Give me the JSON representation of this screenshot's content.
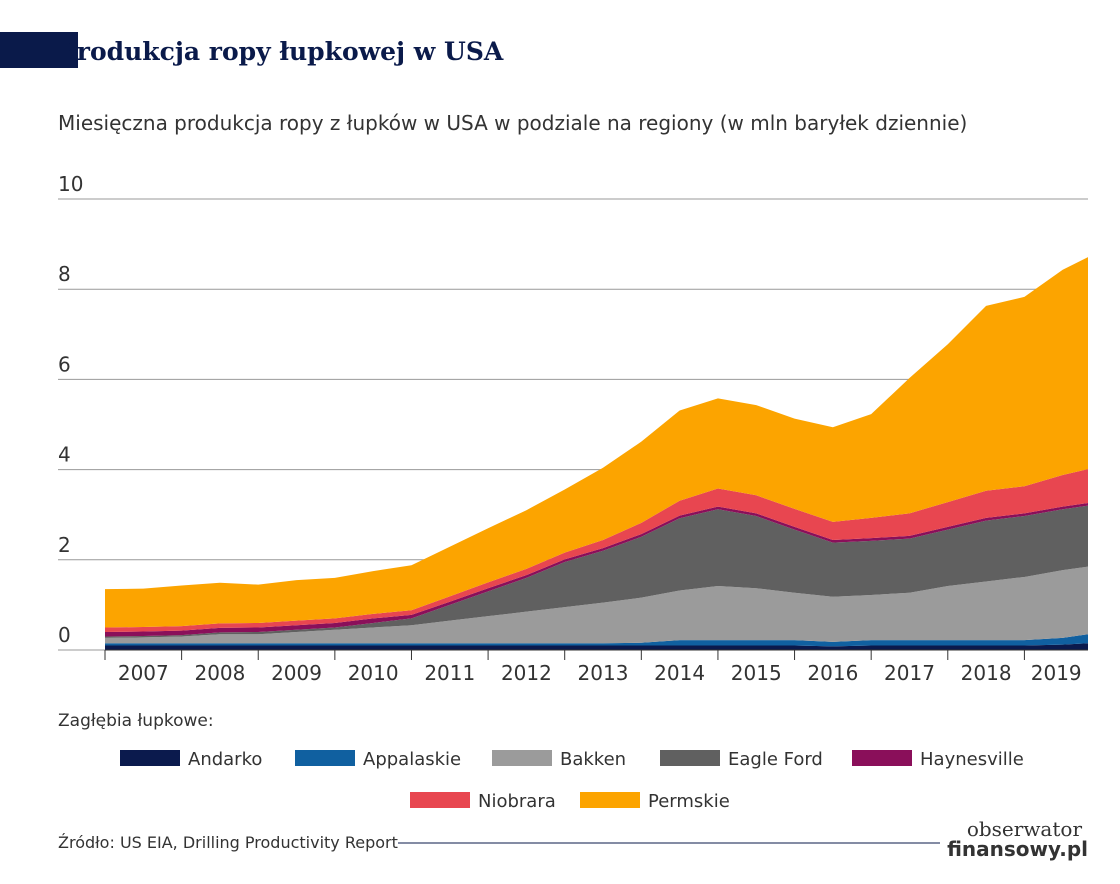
{
  "chart_data": {
    "type": "stacked_area",
    "title": "Produkcja ropy łupkowej w USA",
    "subtitle": "Miesięczna produkcja ropy z łupków w USA w podziale na regiony (w mln baryłek dziennie)",
    "legend_title": "Zagłębia łupkowe:",
    "source": "Źródło: US EIA, Drilling Productivity Report",
    "logo": [
      "obserwator",
      "finansowy.pl"
    ],
    "x": [
      2007,
      2007.5,
      2008,
      2008.5,
      2009,
      2009.5,
      2010,
      2010.5,
      2011,
      2011.5,
      2012,
      2012.5,
      2013,
      2013.5,
      2014,
      2014.5,
      2015,
      2015.5,
      2016,
      2016.5,
      2017,
      2017.5,
      2018,
      2018.5,
      2019,
      2019.5,
      2019.83
    ],
    "xlim": [
      2007,
      2019.83
    ],
    "xticks": [
      2007,
      2008,
      2009,
      2010,
      2011,
      2012,
      2013,
      2014,
      2015,
      2016,
      2017,
      2018,
      2019
    ],
    "ylim": [
      0,
      10
    ],
    "yticks": [
      0,
      2,
      4,
      6,
      8,
      10
    ],
    "grid": true,
    "series": [
      {
        "name": "Andarko",
        "color": "#0b1a4d",
        "values": [
          0.1,
          0.1,
          0.1,
          0.1,
          0.1,
          0.1,
          0.1,
          0.1,
          0.1,
          0.1,
          0.1,
          0.1,
          0.1,
          0.1,
          0.1,
          0.1,
          0.1,
          0.1,
          0.1,
          0.08,
          0.1,
          0.1,
          0.1,
          0.1,
          0.1,
          0.12,
          0.15
        ]
      },
      {
        "name": "Appalaskie",
        "color": "#1060a0",
        "values": [
          0.05,
          0.05,
          0.05,
          0.05,
          0.05,
          0.05,
          0.05,
          0.05,
          0.05,
          0.05,
          0.05,
          0.05,
          0.05,
          0.05,
          0.06,
          0.12,
          0.12,
          0.12,
          0.12,
          0.1,
          0.12,
          0.12,
          0.12,
          0.12,
          0.12,
          0.15,
          0.2
        ]
      },
      {
        "name": "Bakken",
        "color": "#9b9b9b",
        "values": [
          0.12,
          0.13,
          0.15,
          0.2,
          0.2,
          0.25,
          0.3,
          0.35,
          0.4,
          0.5,
          0.6,
          0.7,
          0.8,
          0.9,
          1.0,
          1.1,
          1.2,
          1.15,
          1.05,
          1.0,
          1.0,
          1.05,
          1.2,
          1.3,
          1.4,
          1.5,
          1.5
        ]
      },
      {
        "name": "Eagle Ford",
        "color": "#606060",
        "values": [
          0.03,
          0.03,
          0.03,
          0.04,
          0.05,
          0.05,
          0.05,
          0.1,
          0.15,
          0.35,
          0.55,
          0.75,
          1.0,
          1.15,
          1.35,
          1.6,
          1.7,
          1.6,
          1.4,
          1.2,
          1.2,
          1.2,
          1.25,
          1.35,
          1.35,
          1.35,
          1.35
        ]
      },
      {
        "name": "Haynesville",
        "color": "#8a0f5a",
        "values": [
          0.1,
          0.1,
          0.1,
          0.1,
          0.1,
          0.1,
          0.1,
          0.1,
          0.08,
          0.07,
          0.07,
          0.06,
          0.06,
          0.06,
          0.06,
          0.06,
          0.06,
          0.06,
          0.06,
          0.06,
          0.06,
          0.06,
          0.06,
          0.06,
          0.06,
          0.06,
          0.06
        ]
      },
      {
        "name": "Niobrara",
        "color": "#e84650",
        "values": [
          0.1,
          0.1,
          0.1,
          0.1,
          0.1,
          0.1,
          0.1,
          0.1,
          0.1,
          0.12,
          0.13,
          0.14,
          0.15,
          0.18,
          0.25,
          0.33,
          0.4,
          0.4,
          0.4,
          0.4,
          0.45,
          0.5,
          0.55,
          0.6,
          0.6,
          0.7,
          0.75
        ]
      },
      {
        "name": "Permskie",
        "color": "#fca400",
        "values": [
          0.85,
          0.85,
          0.9,
          0.9,
          0.85,
          0.9,
          0.9,
          0.95,
          1.0,
          1.1,
          1.2,
          1.3,
          1.4,
          1.6,
          1.8,
          2.0,
          2.0,
          2.0,
          2.0,
          2.1,
          2.3,
          3.0,
          3.5,
          4.1,
          4.2,
          4.55,
          4.7
        ]
      }
    ]
  }
}
